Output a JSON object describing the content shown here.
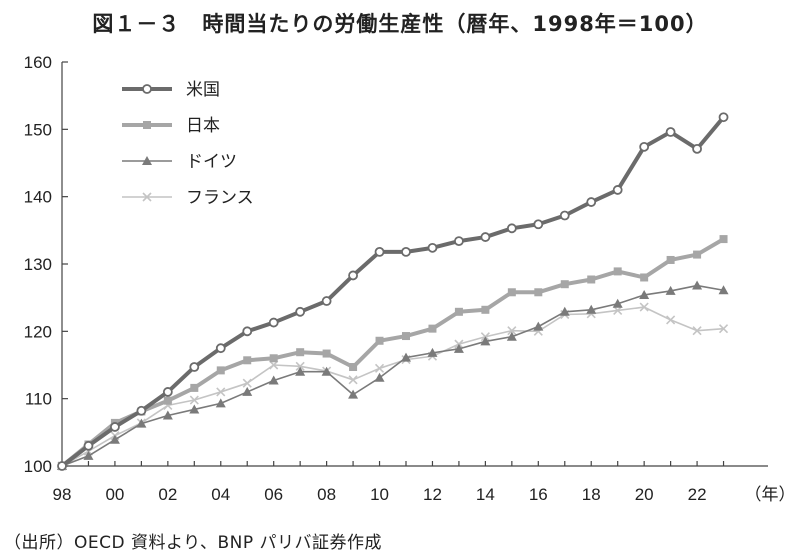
{
  "title": "図１－３　時間当たりの労働生産性（暦年、1998年＝100）",
  "source": "（出所）OECD 資料より、BNP パリバ証券作成",
  "chart_data": {
    "type": "line",
    "x": [
      "98",
      "99",
      "00",
      "01",
      "02",
      "03",
      "04",
      "05",
      "06",
      "07",
      "08",
      "09",
      "10",
      "11",
      "12",
      "13",
      "14",
      "15",
      "16",
      "17",
      "18",
      "19",
      "20",
      "21",
      "22",
      "23"
    ],
    "x_tick_labels": [
      "98",
      "00",
      "02",
      "04",
      "06",
      "08",
      "10",
      "12",
      "14",
      "16",
      "18",
      "20",
      "22"
    ],
    "x_unit_label": "（年）",
    "ylim": [
      100,
      160
    ],
    "y_ticks": [
      100,
      110,
      120,
      130,
      140,
      150,
      160
    ],
    "grid": false,
    "legend_position": "top-left",
    "series": [
      {
        "name": "米国",
        "marker": "circle",
        "color": "#6b6b6b",
        "values": [
          100.0,
          103.0,
          105.8,
          108.2,
          111.0,
          114.7,
          117.5,
          120.0,
          121.3,
          122.9,
          124.5,
          128.3,
          131.8,
          131.8,
          132.4,
          133.4,
          134.0,
          135.3,
          135.9,
          137.2,
          139.2,
          141.0,
          147.4,
          149.6,
          147.1,
          151.8
        ]
      },
      {
        "name": "日本",
        "marker": "square",
        "color": "#a6a6a6",
        "values": [
          100.0,
          103.2,
          106.4,
          108.1,
          109.7,
          111.6,
          114.2,
          115.7,
          116.0,
          116.9,
          116.7,
          114.7,
          118.6,
          119.3,
          120.4,
          122.9,
          123.2,
          125.8,
          125.8,
          127.0,
          127.7,
          128.9,
          128.0,
          130.6,
          131.4,
          133.7
        ]
      },
      {
        "name": "ドイツ",
        "marker": "triangle",
        "color": "#7a7a7a",
        "values": [
          100.0,
          101.5,
          103.9,
          106.3,
          107.5,
          108.4,
          109.3,
          111.0,
          112.7,
          114.0,
          114.0,
          110.6,
          113.1,
          116.1,
          116.8,
          117.4,
          118.5,
          119.2,
          120.7,
          122.9,
          123.2,
          124.1,
          125.4,
          126.0,
          126.8,
          126.1
        ]
      },
      {
        "name": "フランス",
        "marker": "x",
        "color": "#c4c4c4",
        "values": [
          100.0,
          102.2,
          104.5,
          106.4,
          109.0,
          109.8,
          111.0,
          112.3,
          115.0,
          114.8,
          114.1,
          112.8,
          114.5,
          115.8,
          116.3,
          118.1,
          119.2,
          120.1,
          120.0,
          122.5,
          122.6,
          123.1,
          123.6,
          121.7,
          120.1,
          120.4
        ]
      }
    ]
  }
}
